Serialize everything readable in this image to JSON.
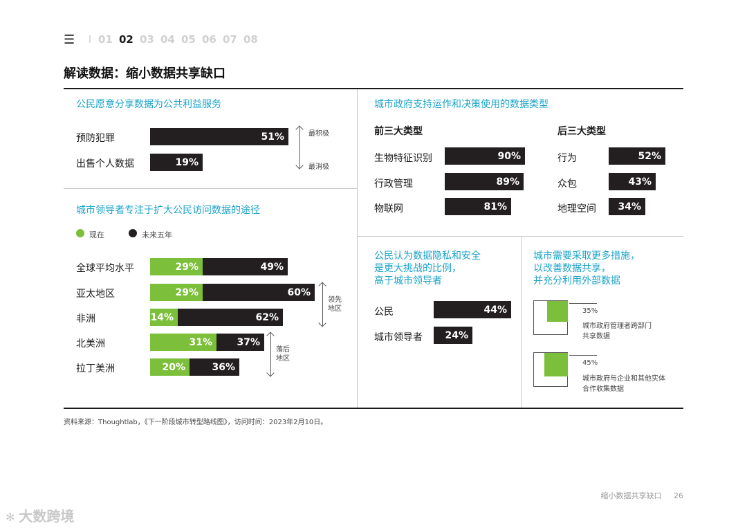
{
  "nav": {
    "menu_icon": "menu-icon",
    "separator": "I",
    "items": [
      "01",
      "02",
      "03",
      "04",
      "05",
      "06",
      "07",
      "08"
    ],
    "active": "02"
  },
  "title": "解读数据：缩小数据共享缺口",
  "colors": {
    "accent": "#1aa3c8",
    "green": "#7cbf3a",
    "dark": "#231f20"
  },
  "section1": {
    "title": "公民愿意分享数据为公共利益服务",
    "rows": [
      {
        "label": "预防犯罪",
        "value": "51%",
        "pct": 51
      },
      {
        "label": "出售个人数据",
        "value": "19%",
        "pct": 19
      }
    ],
    "scale_top": "最积极",
    "scale_bottom": "最消极"
  },
  "section2": {
    "title": "城市领导者专注于扩大公民访问数据的途径",
    "legend_now": "现在",
    "legend_future": "未来五年",
    "rows": [
      {
        "label": "全球平均水平",
        "now": "29%",
        "future": "49%",
        "now_pct": 29,
        "future_pct": 49
      },
      {
        "label": "亚太地区",
        "now": "29%",
        "future": "60%",
        "now_pct": 29,
        "future_pct": 60
      },
      {
        "label": "非洲",
        "now": "14%",
        "future": "62%",
        "now_pct": 14,
        "future_pct": 62
      },
      {
        "label": "北美洲",
        "now": "31%",
        "future": "37%",
        "now_pct": 31,
        "future_pct": 37
      },
      {
        "label": "拉丁美洲",
        "now": "20%",
        "future": "36%",
        "now_pct": 20,
        "future_pct": 36
      }
    ],
    "leading": "领先\n地区",
    "lagging": "落后\n地区"
  },
  "section3": {
    "title": "城市政府支持运作和决策使用的数据类型",
    "top3_title": "前三大类型",
    "bottom3_title": "后三大类型",
    "top3": [
      {
        "label": "生物特征识别",
        "value": "90%",
        "pct": 90
      },
      {
        "label": "行政管理",
        "value": "89%",
        "pct": 89
      },
      {
        "label": "物联网",
        "value": "81%",
        "pct": 81
      }
    ],
    "bottom3": [
      {
        "label": "行为",
        "value": "52%",
        "pct": 52
      },
      {
        "label": "众包",
        "value": "43%",
        "pct": 43
      },
      {
        "label": "地理空间",
        "value": "34%",
        "pct": 34
      }
    ]
  },
  "section4": {
    "title_l1": "公民认为数据隐私和安全",
    "title_l2": "是更大挑战的比例，",
    "title_l3": "高于城市领导者",
    "rows": [
      {
        "label": "公民",
        "value": "44%",
        "pct": 44
      },
      {
        "label": "城市领导者",
        "value": "24%",
        "pct": 24
      }
    ]
  },
  "section5": {
    "title_l1": "城市需要采取更多措施，",
    "title_l2": "以改善数据共享，",
    "title_l3": "并充分利用外部数据",
    "items": [
      {
        "pct_label": "35%",
        "pct": 35,
        "desc_l1": "城市政府管理者跨部门",
        "desc_l2": "共享数据"
      },
      {
        "pct_label": "45%",
        "pct": 45,
        "desc_l1": "城市政府与企业和其他实体",
        "desc_l2": "合作收集数据"
      }
    ]
  },
  "source": "资料来源：Thoughtlab，《下一阶段城市转型路线图》，访问时间：2023年2月10日。",
  "footer": {
    "section_name": "缩小数据共享缺口",
    "page": "26"
  },
  "watermark": "大数跨境"
}
